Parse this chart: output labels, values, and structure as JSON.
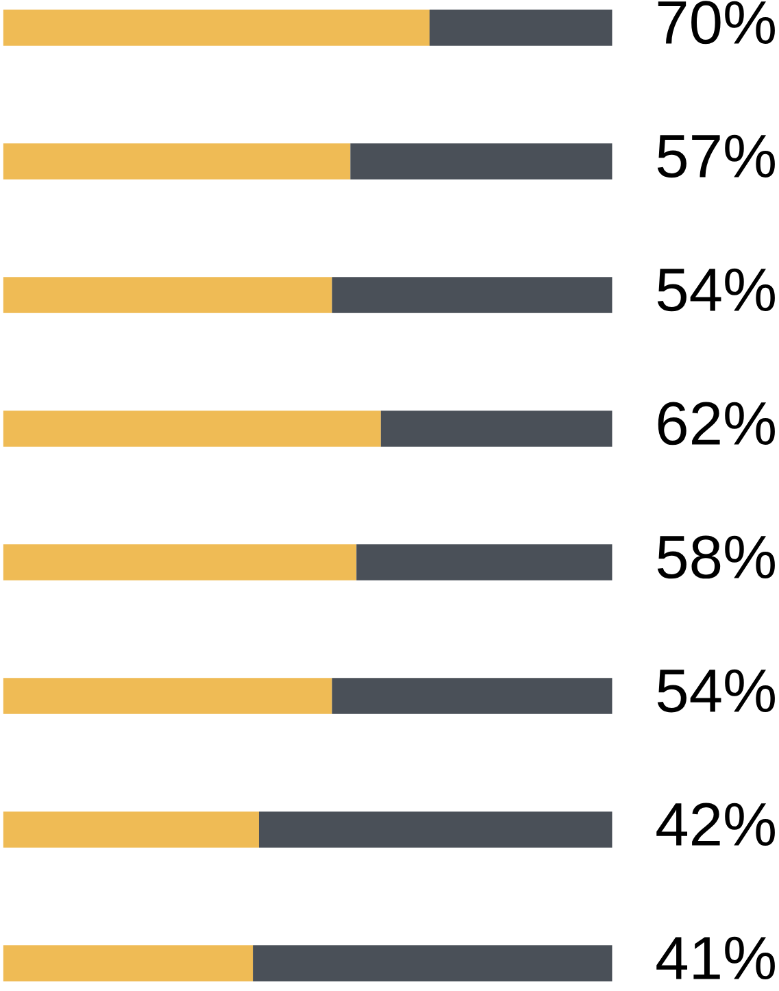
{
  "chart_data": {
    "type": "bar",
    "orientation": "horizontal",
    "stacked": true,
    "categories": [
      null,
      null,
      null,
      null,
      null,
      null,
      null,
      null
    ],
    "series": [
      {
        "color": "#efbb55",
        "values": [
          70,
          57,
          54,
          62,
          58,
          54,
          42,
          41
        ],
        "value_labels": [
          "70%",
          "57%",
          "54%",
          "62%",
          "58%",
          "54%",
          "42%",
          "41%"
        ]
      },
      {
        "color": "#4a5058",
        "values": [
          30,
          43,
          46,
          38,
          42,
          46,
          58,
          59
        ]
      }
    ],
    "xlim": [
      0,
      100
    ],
    "tick_labels": false,
    "grid": false,
    "legend": false
  }
}
